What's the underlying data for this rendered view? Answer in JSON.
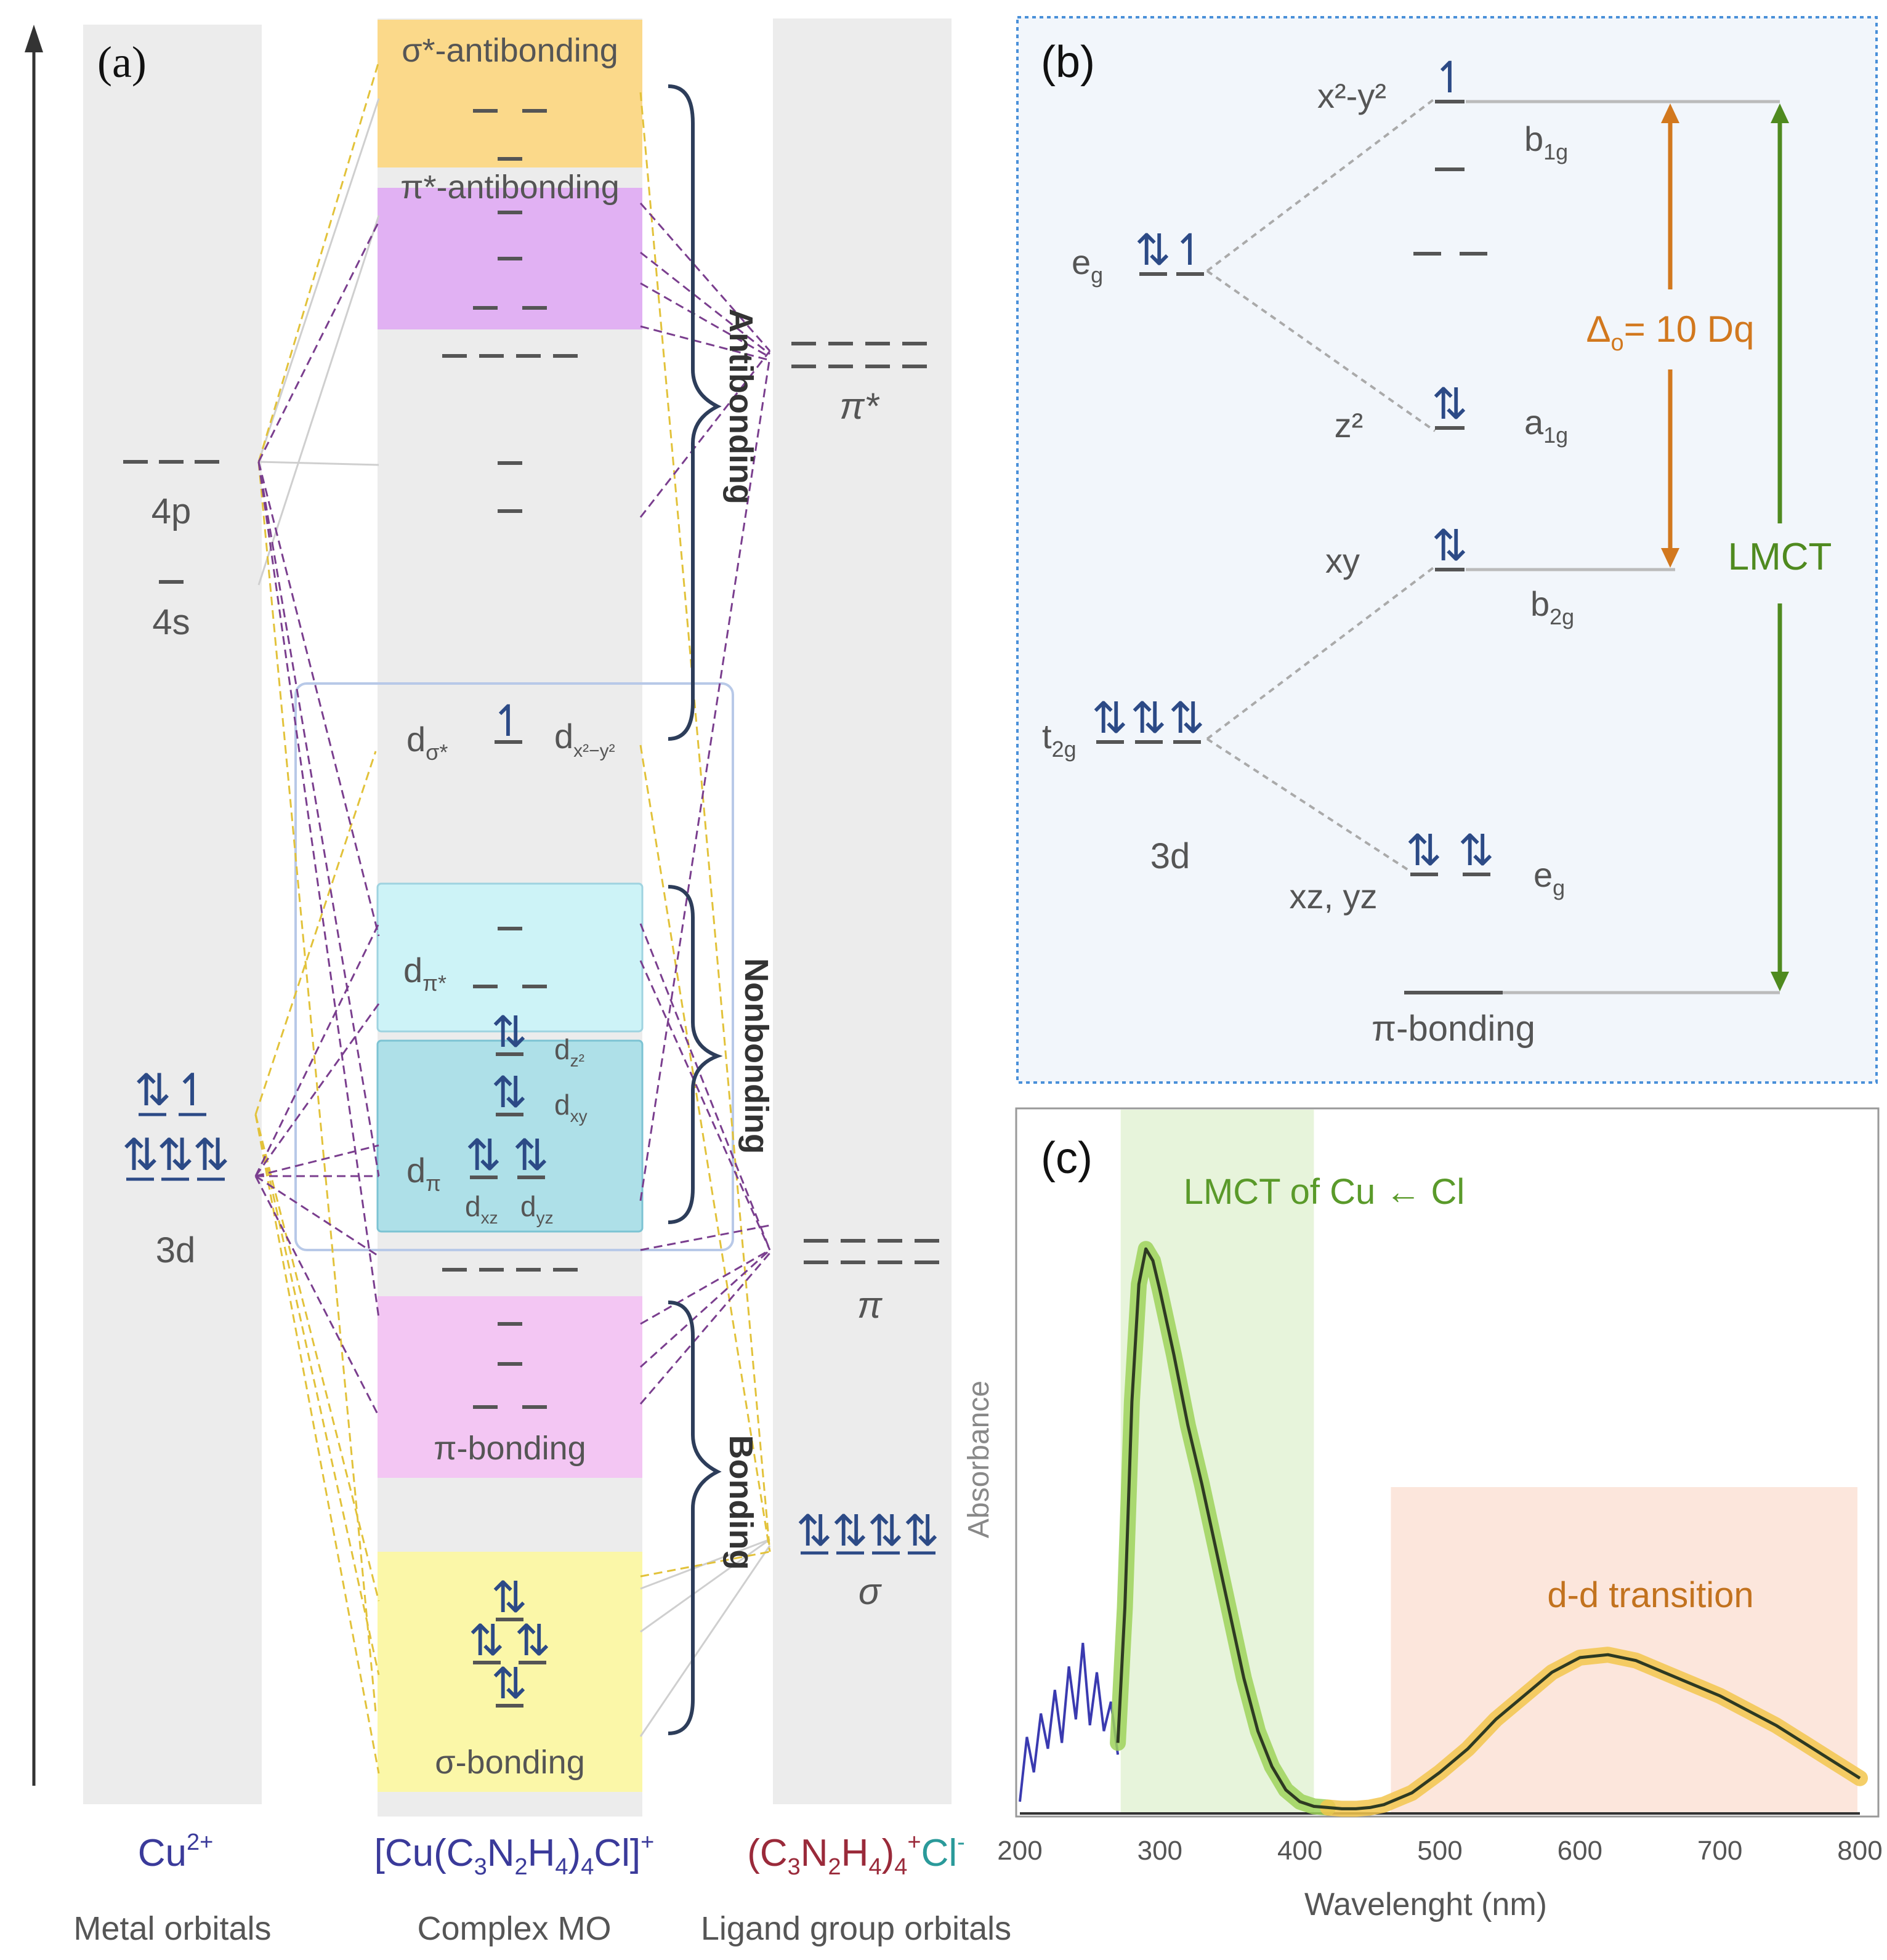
{
  "panel_a": {
    "label": "(a)",
    "metal_levels": {
      "p4": "4p",
      "s4": "4s",
      "d3": "3d"
    },
    "mo_boxes": {
      "sigma_anti": "σ*-antibonding",
      "pi_anti": "π*-antibonding",
      "pi_bond": "π-bonding",
      "sigma_bond": "σ-bonding"
    },
    "d_labels": {
      "d_sigma_star": "d",
      "d_sigma_star_sub": "σ*",
      "d_x2y2": "d",
      "d_x2y2_sub": "x²−y²",
      "d_pi_star": "d",
      "d_pi_star_sub": "π*",
      "d_pi": "d",
      "d_pi_sub": "π",
      "d_z2": "d",
      "d_z2_sub": "z²",
      "d_xy": "d",
      "d_xy_sub": "xy",
      "d_xz": "d",
      "d_xz_sub": "xz",
      "d_yz": "d",
      "d_yz_sub": "yz"
    },
    "brackets": {
      "antibonding": "Antibonding",
      "nonbonding": "Nonbonding",
      "bonding": "Bonding"
    },
    "ligand_levels": {
      "pi_star": "π*",
      "pi": "π",
      "sigma": "σ"
    },
    "bottom_titles": {
      "metal": "Cu",
      "metal_sup": "2+",
      "complex_a": "[Cu(C",
      "complex_s1": "3",
      "complex_b": "N",
      "complex_s2": "2",
      "complex_c": "H",
      "complex_s3": "4",
      "complex_d": ")",
      "complex_s4": "4",
      "complex_e": "Cl]",
      "complex_sup": "+",
      "ligand_a": "(C",
      "ligand_s1": "3",
      "ligand_b": "N",
      "ligand_s2": "2",
      "ligand_c": "H",
      "ligand_s3": "4",
      "ligand_d": ")",
      "ligand_s4": "4",
      "ligand_sup": "+",
      "ligand_e": "Cl",
      "ligand_sup2": "-"
    },
    "bottom_captions": {
      "metal": "Metal orbitals",
      "complex": "Complex MO",
      "ligand": "Ligand group orbitals"
    },
    "colors": {
      "sigma_anti": "#fbd98a",
      "pi_anti": "#e1b1f3",
      "d_pi_star": "#cdf3f7",
      "d_pi": "#aee0e8",
      "pi_bond": "#f3c6f3",
      "sigma_bond": "#fbf7a8",
      "column": "#ececec"
    }
  },
  "panel_b": {
    "label": "(b)",
    "eg": "e",
    "eg_sub": "g",
    "t2g": "t",
    "t2g_sub": "2g",
    "d3": "3d",
    "x2y2": "x²-y²",
    "z2": "z²",
    "xy": "xy",
    "xzyz": "xz, yz",
    "b1g": "b",
    "b1g_sub": "1g",
    "a1g": "a",
    "a1g_sub": "1g",
    "b2g": "b",
    "b2g_sub": "2g",
    "eg2": "e",
    "eg2_sub": "g",
    "delta": "Δ",
    "delta_sub": "o",
    "delta_rest": "= 10 Dq",
    "lmct": "LMCT",
    "pi_bonding": "π-bonding",
    "colors": {
      "background": "#f2f6fb",
      "border": "#4a90d9",
      "delta": "#d2781e",
      "lmct": "#4f8a1f"
    }
  },
  "panel_c": {
    "label": "(c)",
    "lmct_band_label": "LMCT of Cu ← Cl",
    "dd_band_label": "d-d transition",
    "colors": {
      "lmct": "#5a9a2a",
      "dd": "#c2721e"
    }
  },
  "chart_data": {
    "type": "line",
    "title": "",
    "xlabel": "Wavelenght (nm)",
    "ylabel": "Absorbance",
    "xlim": [
      200,
      800
    ],
    "ylim": [
      0,
      1.0
    ],
    "x_ticks": [
      200,
      300,
      400,
      500,
      600,
      700,
      800
    ],
    "regions": [
      {
        "name": "LMCT of Cu ← Cl",
        "x_start": 272,
        "x_end": 410
      },
      {
        "name": "d-d transition",
        "x_start": 465,
        "x_end": 800
      }
    ],
    "series": [
      {
        "name": "noisy baseline",
        "x": [
          200,
          205,
          210,
          215,
          220,
          225,
          230,
          235,
          240,
          245,
          250,
          255,
          260,
          265,
          270
        ],
        "y": [
          0.02,
          0.13,
          0.07,
          0.17,
          0.11,
          0.21,
          0.12,
          0.25,
          0.16,
          0.29,
          0.15,
          0.24,
          0.14,
          0.19,
          0.1
        ]
      },
      {
        "name": "absorbance",
        "x": [
          270,
          275,
          280,
          285,
          290,
          295,
          300,
          310,
          320,
          330,
          340,
          350,
          360,
          370,
          380,
          390,
          400,
          410,
          420,
          430,
          440,
          450,
          460,
          480,
          500,
          520,
          540,
          560,
          580,
          600,
          620,
          640,
          660,
          680,
          700,
          720,
          740,
          760,
          780,
          800
        ],
        "y": [
          0.12,
          0.35,
          0.7,
          0.9,
          0.96,
          0.94,
          0.89,
          0.78,
          0.66,
          0.56,
          0.45,
          0.34,
          0.23,
          0.14,
          0.08,
          0.04,
          0.02,
          0.012,
          0.01,
          0.008,
          0.008,
          0.01,
          0.015,
          0.035,
          0.07,
          0.11,
          0.16,
          0.2,
          0.24,
          0.265,
          0.27,
          0.26,
          0.24,
          0.22,
          0.2,
          0.175,
          0.15,
          0.12,
          0.09,
          0.06
        ]
      }
    ]
  }
}
